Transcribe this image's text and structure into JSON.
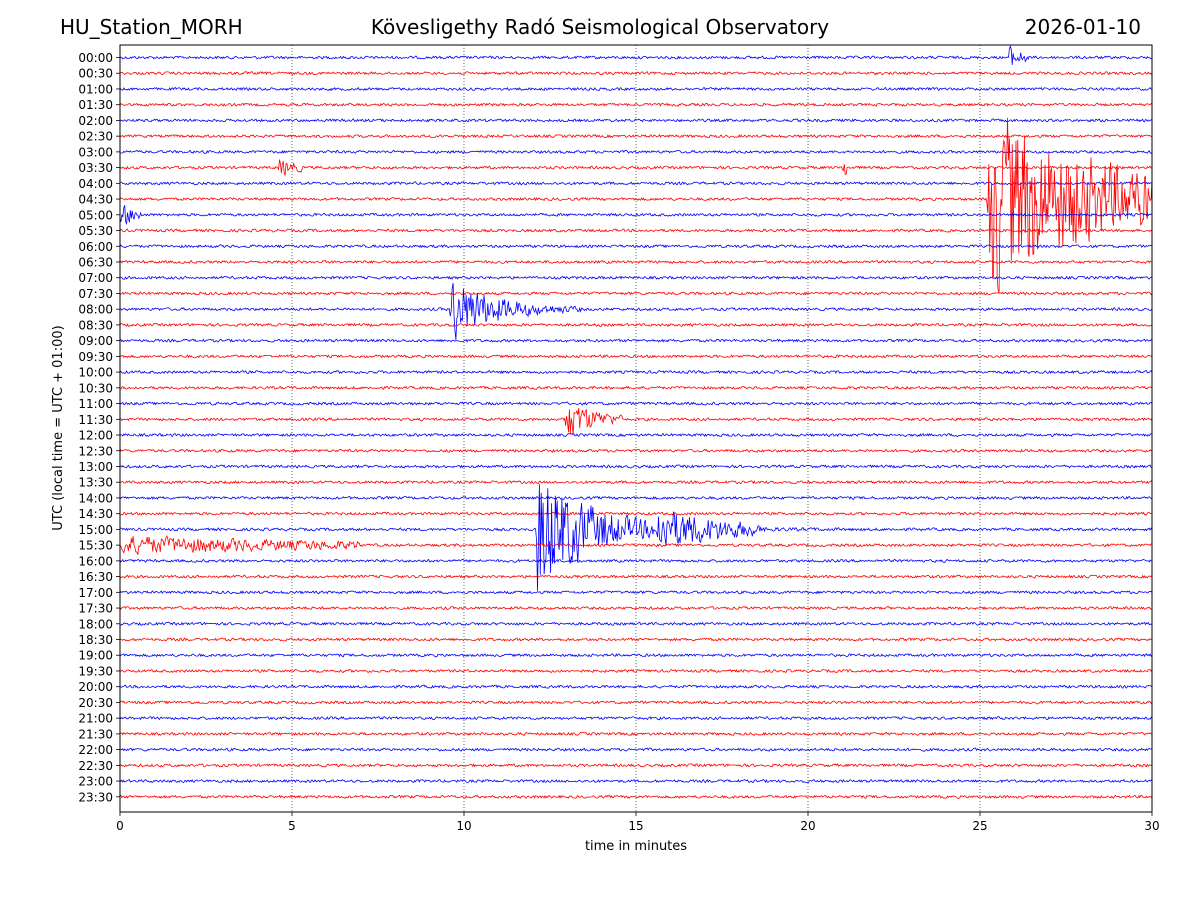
{
  "header": {
    "station": "HU_Station_MORH",
    "observatory": "Kövesligethy Radó Seismological Observatory",
    "date": "2026-01-10"
  },
  "chart_data": {
    "type": "line",
    "title": "Kövesligethy Radó Seismological Observatory",
    "xlabel": "time in minutes",
    "ylabel": "UTC (local time = UTC + 01:00)",
    "xlim": [
      0,
      30
    ],
    "x_ticks": [
      0,
      5,
      10,
      15,
      20,
      25,
      30
    ],
    "x_tick_labels": [
      "0",
      "5",
      "10",
      "15",
      "20",
      "25",
      "30"
    ],
    "grid": "vertical dotted at x ticks",
    "colors": {
      "even_rows": "#0000ff",
      "odd_rows": "#ff0000"
    },
    "rows": [
      "00:00",
      "00:30",
      "01:00",
      "01:30",
      "02:00",
      "02:30",
      "03:00",
      "03:30",
      "04:00",
      "04:30",
      "05:00",
      "05:30",
      "06:00",
      "06:30",
      "07:00",
      "07:30",
      "08:00",
      "08:30",
      "09:00",
      "09:30",
      "10:00",
      "10:30",
      "11:00",
      "11:30",
      "12:00",
      "12:30",
      "13:00",
      "13:30",
      "14:00",
      "14:30",
      "15:00",
      "15:30",
      "16:00",
      "16:30",
      "17:00",
      "17:30",
      "18:00",
      "18:30",
      "19:00",
      "19:30",
      "20:00",
      "20:30",
      "21:00",
      "21:30",
      "22:00",
      "22:30",
      "23:00",
      "23:30"
    ],
    "events": [
      {
        "row": "00:00",
        "start_min": 25.8,
        "peak": 0.6,
        "duration_min": 0.6,
        "decay": 0.5
      },
      {
        "row": "03:30",
        "start_min": 4.6,
        "peak": 0.5,
        "duration_min": 0.7,
        "decay": 0.5
      },
      {
        "row": "03:30",
        "start_min": 21.0,
        "peak": 0.6,
        "duration_min": 0.15,
        "decay": 0.3
      },
      {
        "row": "04:30",
        "start_min": 25.2,
        "peak": 5.0,
        "duration_min": 4.8,
        "decay": 3.5
      },
      {
        "row": "05:00",
        "start_min": 0.0,
        "peak": 0.6,
        "duration_min": 0.6,
        "decay": 0.5
      },
      {
        "row": "08:00",
        "start_min": 9.6,
        "peak": 1.8,
        "duration_min": 3.8,
        "decay": 1.2
      },
      {
        "row": "11:30",
        "start_min": 12.9,
        "peak": 1.2,
        "duration_min": 1.7,
        "decay": 0.8
      },
      {
        "row": "15:00",
        "start_min": 12.1,
        "peak": 3.5,
        "duration_min": 17.9,
        "decay": 1.5
      },
      {
        "row": "15:00",
        "start_min": 15.6,
        "peak": 1.2,
        "duration_min": 3.0,
        "decay": 2.0
      },
      {
        "row": "15:30",
        "start_min": 0.0,
        "peak": 0.45,
        "duration_min": 7.0,
        "decay": 6.0
      }
    ]
  }
}
